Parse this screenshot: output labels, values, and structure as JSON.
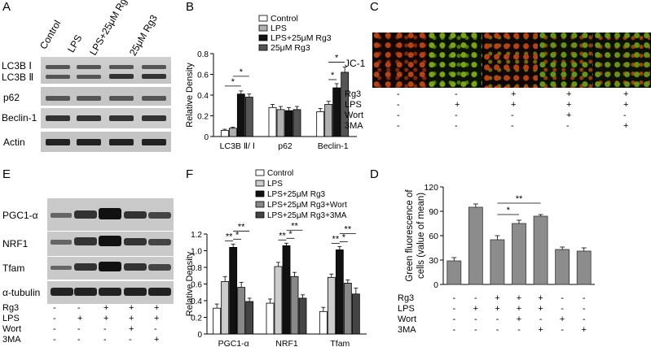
{
  "panels": {
    "A": "A",
    "B": "B",
    "C": "C",
    "D": "D",
    "E": "E",
    "F": "F"
  },
  "panelA": {
    "lanes": [
      "Control",
      "LPS",
      "LPS+25μM Rg3",
      "25μM Rg3"
    ],
    "bands": [
      "LC3B Ⅰ",
      "LC3B Ⅱ",
      "p62",
      "Beclin-1",
      "Actin"
    ]
  },
  "panelE": {
    "bands": [
      "PGC1-α",
      "NRF1",
      "Tfam",
      "α-tubulin"
    ],
    "treat_labels": [
      "Rg3",
      "LPS",
      "Wort",
      "3MA"
    ],
    "treat_values": [
      [
        "-",
        "-",
        "+",
        "+",
        "+"
      ],
      [
        "-",
        "+",
        "+",
        "+",
        "+"
      ],
      [
        "-",
        "-",
        "-",
        "+",
        "-"
      ],
      [
        "-",
        "-",
        "-",
        "-",
        "+"
      ]
    ]
  },
  "panelC": {
    "stain": "JC-1",
    "treat_labels": [
      "Rg3",
      "LPS",
      "Wort",
      "3MA"
    ],
    "treat_values": [
      [
        "-",
        "-",
        "+",
        "+",
        "+"
      ],
      [
        "-",
        "+",
        "+",
        "+",
        "+"
      ],
      [
        "-",
        "-",
        "-",
        "+",
        "-"
      ],
      [
        "-",
        "-",
        "-",
        "-",
        "+"
      ]
    ]
  },
  "chart_data": [
    {
      "panel": "B",
      "type": "bar",
      "ylabel": "Relative Density",
      "ylim": [
        0,
        0.8
      ],
      "yticks": [
        "0",
        "0.2",
        "0.4",
        "0.6",
        "0.8"
      ],
      "categories": [
        "LC3B Ⅱ/ Ⅰ",
        "p62",
        "Beclin-1"
      ],
      "series": [
        {
          "name": "Control",
          "color": "#ffffff",
          "values": [
            0.06,
            0.28,
            0.24
          ],
          "errors": [
            0.01,
            0.03,
            0.03
          ]
        },
        {
          "name": "LPS",
          "color": "#b0b0b0",
          "values": [
            0.08,
            0.26,
            0.31
          ],
          "errors": [
            0.01,
            0.03,
            0.03
          ]
        },
        {
          "name": "LPS+25μM Rg3",
          "color": "#111111",
          "values": [
            0.41,
            0.25,
            0.47
          ],
          "errors": [
            0.03,
            0.03,
            0.04
          ]
        },
        {
          "name": "25μM Rg3",
          "color": "#555555",
          "values": [
            0.38,
            0.26,
            0.62
          ],
          "errors": [
            0.03,
            0.03,
            0.05
          ]
        }
      ],
      "annotations": [
        "*",
        "*",
        "*",
        "*"
      ]
    },
    {
      "panel": "F",
      "type": "bar",
      "ylabel": "Relative Density",
      "ylim": [
        0,
        1.2
      ],
      "yticks": [
        "0",
        "0.2",
        "0.4",
        "0.6",
        "0.8",
        "1.0",
        "1.2"
      ],
      "categories": [
        "PGC1-α",
        "NRF1",
        "Tfam"
      ],
      "series": [
        {
          "name": "Control",
          "color": "#ffffff",
          "values": [
            0.31,
            0.37,
            0.27
          ],
          "errors": [
            0.05,
            0.05,
            0.05
          ]
        },
        {
          "name": "LPS",
          "color": "#cccccc",
          "values": [
            0.63,
            0.81,
            0.68
          ],
          "errors": [
            0.06,
            0.05,
            0.04
          ]
        },
        {
          "name": "LPS+25μM Rg3",
          "color": "#111111",
          "values": [
            1.04,
            1.06,
            1.01
          ],
          "errors": [
            0.04,
            0.03,
            0.04
          ]
        },
        {
          "name": "LPS+25μM Rg3+Wort",
          "color": "#888888",
          "values": [
            0.56,
            0.69,
            0.61
          ],
          "errors": [
            0.06,
            0.05,
            0.04
          ]
        },
        {
          "name": "LPS+25μM Rg3+3MA",
          "color": "#444444",
          "values": [
            0.39,
            0.43,
            0.48
          ],
          "errors": [
            0.04,
            0.04,
            0.07
          ]
        }
      ],
      "annotations": [
        "**",
        "**",
        "*",
        "**",
        "**",
        "*",
        "**",
        "**",
        "*"
      ]
    },
    {
      "panel": "D",
      "type": "bar",
      "ylabel": "Green fluorescence of cells (value of mean)",
      "ylim": [
        0,
        120
      ],
      "yticks": [
        "0",
        "30",
        "60",
        "90",
        "120"
      ],
      "values": [
        29,
        95,
        55,
        75,
        84,
        43,
        41
      ],
      "errors": [
        4,
        4,
        5,
        4,
        2,
        3,
        4
      ],
      "color": "#8c8c8c",
      "treat_labels": [
        "Rg3",
        "LPS",
        "Wort",
        "3MA"
      ],
      "treat_values": [
        [
          "-",
          "-",
          "+",
          "+",
          "+",
          "-",
          "-"
        ],
        [
          "-",
          "+",
          "+",
          "+",
          "+",
          "-",
          "-"
        ],
        [
          "-",
          "-",
          "-",
          "+",
          "-",
          "+",
          "-"
        ],
        [
          "-",
          "-",
          "-",
          "-",
          "+",
          "-",
          "+"
        ]
      ],
      "annotations": [
        "*",
        "**"
      ]
    }
  ]
}
